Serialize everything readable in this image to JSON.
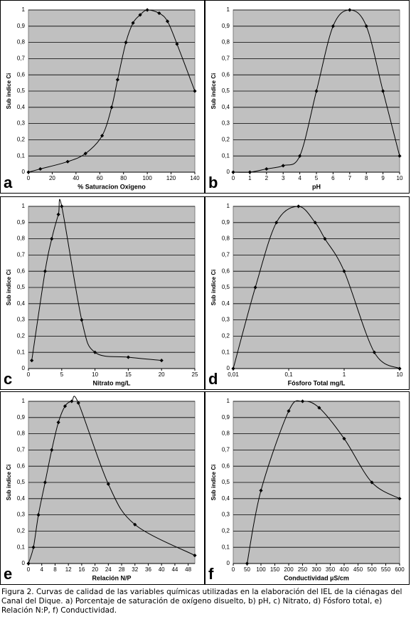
{
  "chart_data": [
    {
      "type": "line",
      "panel_label": "a",
      "xlabel": "% Saturacion Oxigeno",
      "ylabel": "Sub indice Ci",
      "color": "#000000",
      "grid": true,
      "x": [
        0,
        10,
        33,
        48,
        62,
        70,
        75,
        82,
        88,
        94,
        100,
        110,
        117,
        125,
        140
      ],
      "values": [
        0,
        0.02,
        0.065,
        0.115,
        0.225,
        0.4,
        0.57,
        0.8,
        0.92,
        0.97,
        1,
        0.98,
        0.93,
        0.79,
        0.5
      ],
      "xlim": [
        0,
        140
      ],
      "ylim": [
        0,
        1
      ],
      "xticks": [
        0,
        20,
        40,
        60,
        80,
        100,
        120,
        140
      ],
      "yticks": [
        0,
        {
          "value": 0.1,
          "label": "0,1"
        },
        {
          "value": 0.2,
          "label": "0,2"
        },
        {
          "value": 0.3,
          "label": "0,3"
        },
        {
          "value": 0.4,
          "label": "0,4"
        },
        {
          "value": 0.5,
          "label": "0,5"
        },
        {
          "value": 0.6,
          "label": "0,6"
        },
        {
          "value": 0.7,
          "label": "0,7"
        },
        {
          "value": 0.8,
          "label": "0,8"
        },
        {
          "value": 0.9,
          "label": "0,9"
        },
        1
      ]
    },
    {
      "type": "line",
      "panel_label": "b",
      "xlabel": "pH",
      "ylabel": "Sub indice Ci",
      "color": "#000000",
      "grid": true,
      "x": [
        0,
        1,
        2,
        3,
        4,
        5,
        6,
        7,
        8,
        9,
        10
      ],
      "values": [
        0,
        0,
        0.02,
        0.04,
        0.1,
        0.5,
        0.9,
        1,
        0.9,
        0.5,
        0.1
      ],
      "xlim": [
        0,
        10
      ],
      "ylim": [
        0,
        1
      ],
      "xticks": [
        0,
        1,
        2,
        3,
        4,
        5,
        6,
        7,
        8,
        9,
        10
      ],
      "yticks": [
        0,
        {
          "value": 0.1,
          "label": "0,1"
        },
        {
          "value": 0.2,
          "label": "0,2"
        },
        {
          "value": 0.3,
          "label": "0,3"
        },
        {
          "value": 0.4,
          "label": "0,4"
        },
        {
          "value": 0.5,
          "label": "0,5"
        },
        {
          "value": 0.6,
          "label": "0,6"
        },
        {
          "value": 0.7,
          "label": "0,7"
        },
        {
          "value": 0.8,
          "label": "0,8"
        },
        {
          "value": 0.9,
          "label": "0,9"
        },
        1
      ]
    },
    {
      "type": "line",
      "panel_label": "c",
      "xlabel": "Nitrato mg/L",
      "ylabel": "Sub indice Ci",
      "color": "#000000",
      "grid": true,
      "x": [
        0.5,
        2.5,
        3.5,
        4.5,
        5,
        8,
        10,
        15,
        20
      ],
      "values": [
        0.05,
        0.6,
        0.8,
        0.95,
        1,
        0.3,
        0.1,
        0.07,
        0.05
      ],
      "xlim": [
        0,
        25
      ],
      "ylim": [
        0,
        1
      ],
      "xticks": [
        0,
        5,
        10,
        15,
        20,
        25
      ],
      "yticks": [
        0,
        {
          "value": 0.1,
          "label": "0,1"
        },
        {
          "value": 0.2,
          "label": "0,2"
        },
        {
          "value": 0.3,
          "label": "0,3"
        },
        {
          "value": 0.4,
          "label": "0,4"
        },
        {
          "value": 0.5,
          "label": "0,5"
        },
        {
          "value": 0.6,
          "label": "0,6"
        },
        {
          "value": 0.7,
          "label": "0,7"
        },
        {
          "value": 0.8,
          "label": "0,8"
        },
        {
          "value": 0.9,
          "label": "0,9"
        },
        1
      ]
    },
    {
      "type": "line",
      "panel_label": "d",
      "xlabel": "Fósforo Total mg/L",
      "ylabel": "Sub indice Ci",
      "color": "#000000",
      "grid": true,
      "xscale": "log",
      "x": [
        0.01,
        0.025,
        0.06,
        0.15,
        0.3,
        0.45,
        1,
        3.5,
        10
      ],
      "values": [
        0,
        0.5,
        0.9,
        1,
        0.9,
        0.8,
        0.6,
        0.1,
        0
      ],
      "xlim": [
        0.01,
        10
      ],
      "ylim": [
        0,
        1
      ],
      "xticks": [
        {
          "value": 0.01,
          "label": "0,01"
        },
        {
          "value": 0.1,
          "label": "0,1"
        },
        1,
        10
      ],
      "yticks": [
        0,
        {
          "value": 0.1,
          "label": "0,1"
        },
        {
          "value": 0.2,
          "label": "0,2"
        },
        {
          "value": 0.3,
          "label": "0,3"
        },
        {
          "value": 0.4,
          "label": "0,4"
        },
        {
          "value": 0.5,
          "label": "0,5"
        },
        {
          "value": 0.6,
          "label": "0,6"
        },
        {
          "value": 0.7,
          "label": "0,7"
        },
        {
          "value": 0.8,
          "label": "0,8"
        },
        {
          "value": 0.9,
          "label": "0,9"
        },
        1
      ]
    },
    {
      "type": "line",
      "panel_label": "e",
      "xlabel": "Relación N/P",
      "ylabel": "Sub indice Ci",
      "color": "#000000",
      "grid": true,
      "x": [
        0,
        1.5,
        3,
        5,
        7,
        9,
        11,
        13,
        15,
        24,
        32,
        50
      ],
      "values": [
        0,
        0.1,
        0.3,
        0.5,
        0.7,
        0.87,
        0.97,
        1,
        0.99,
        0.49,
        0.24,
        0.05
      ],
      "xlim": [
        0,
        50
      ],
      "ylim": [
        0,
        1
      ],
      "xticks": [
        0,
        4,
        8,
        12,
        16,
        20,
        24,
        28,
        32,
        36,
        40,
        44,
        48
      ],
      "yticks": [
        0,
        {
          "value": 0.1,
          "label": "0,1"
        },
        {
          "value": 0.2,
          "label": "0,2"
        },
        {
          "value": 0.3,
          "label": "0,3"
        },
        {
          "value": 0.4,
          "label": "0,4"
        },
        {
          "value": 0.5,
          "label": "0,5"
        },
        {
          "value": 0.6,
          "label": "0,6"
        },
        {
          "value": 0.7,
          "label": "0,7"
        },
        {
          "value": 0.8,
          "label": "0,8"
        },
        {
          "value": 0.9,
          "label": "0,9"
        },
        1
      ]
    },
    {
      "type": "line",
      "panel_label": "f",
      "xlabel": "Conductividad µS/cm",
      "ylabel": "Sub indice Ci",
      "color": "#000000",
      "grid": true,
      "x": [
        50,
        100,
        200,
        250,
        310,
        400,
        500,
        600
      ],
      "values": [
        0,
        0.45,
        0.94,
        1,
        0.96,
        0.77,
        0.5,
        0.4
      ],
      "xlim": [
        0,
        600
      ],
      "ylim": [
        0,
        1
      ],
      "xticks": [
        0,
        50,
        100,
        150,
        200,
        250,
        300,
        350,
        400,
        450,
        500,
        550,
        600
      ],
      "yticks": [
        0,
        {
          "value": 0.1,
          "label": "0,1"
        },
        {
          "value": 0.2,
          "label": "0,2"
        },
        {
          "value": 0.3,
          "label": "0,3"
        },
        {
          "value": 0.4,
          "label": "0,4"
        },
        {
          "value": 0.5,
          "label": "0,5"
        },
        {
          "value": 0.6,
          "label": "0,6"
        },
        {
          "value": 0.7,
          "label": "0,7"
        },
        {
          "value": 0.8,
          "label": "0,8"
        },
        {
          "value": 0.9,
          "label": "0,9"
        },
        1
      ]
    }
  ],
  "caption": "Figura 2. Curvas de calidad de las variables químicas utilizadas en la elaboración del IEL de la ciénagas del Canal del Dique. a) Porcentaje de saturación de oxígeno disuelto, b) pH, c) Nitrato, d) Fósforo total, e) Relación N:P, f) Conductividad."
}
